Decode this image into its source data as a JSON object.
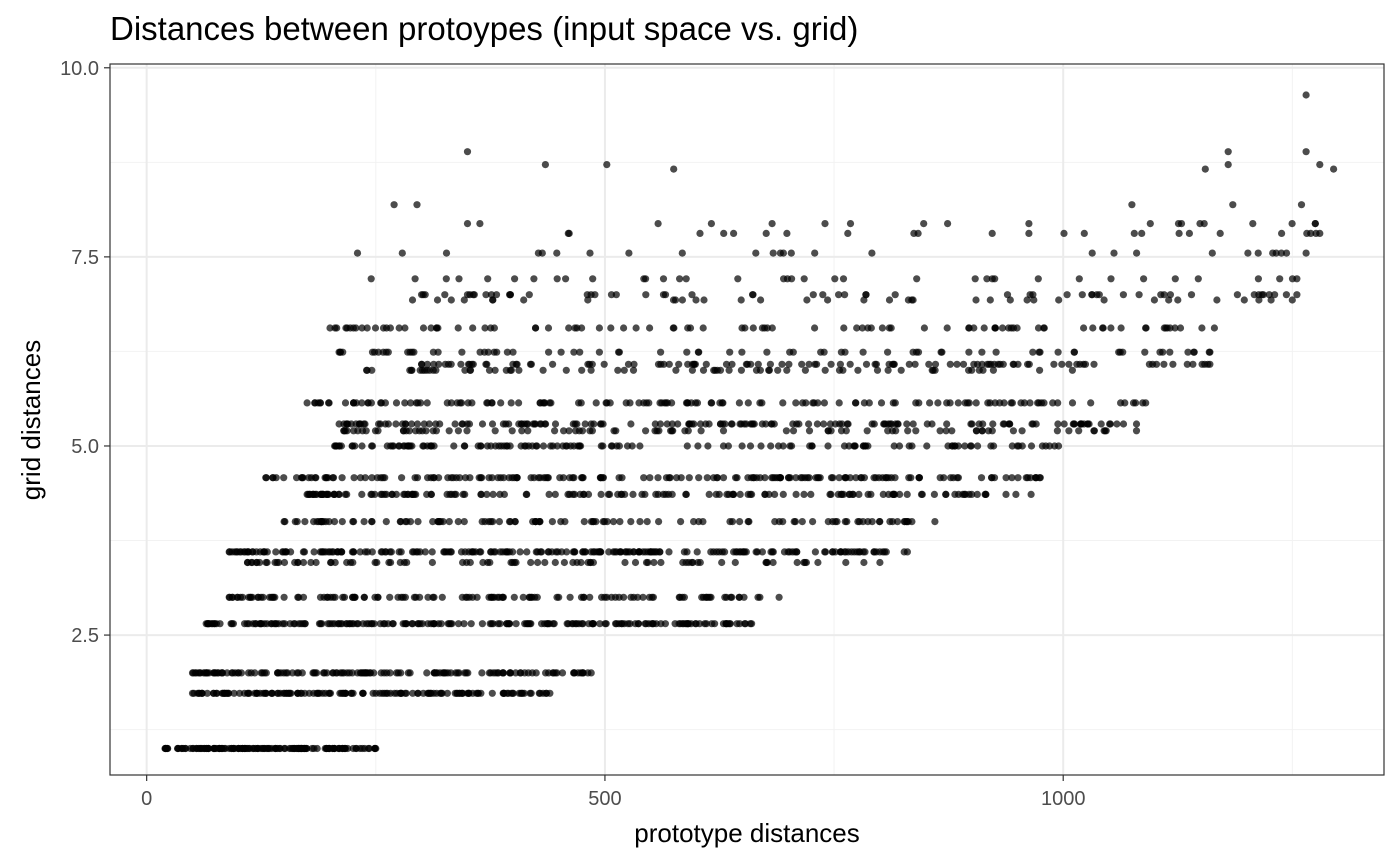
{
  "chart_data": {
    "type": "scatter",
    "title": "Distances between protoypes (input space vs. grid)",
    "xlabel": "prototype distances",
    "ylabel": "grid distances",
    "xlim": [
      -40,
      1350
    ],
    "ylim": [
      0.65,
      10.05
    ],
    "x_ticks": [
      0,
      500,
      1000
    ],
    "x_tick_labels": [
      "0",
      "500",
      "1000"
    ],
    "y_ticks": [
      2.5,
      5.0,
      7.5,
      10.0
    ],
    "y_tick_labels": [
      "2.5",
      "5.0",
      "7.5",
      "10.0"
    ],
    "point_color": "#000000",
    "point_opacity": 0.7,
    "grid": true,
    "legend": "none",
    "bands": [
      {
        "y": 1.0,
        "x_min": 20,
        "x_max": 250,
        "n": 150
      },
      {
        "y": 1.73,
        "x_min": 50,
        "x_max": 440,
        "n": 150
      },
      {
        "y": 2.0,
        "x_min": 50,
        "x_max": 485,
        "n": 140
      },
      {
        "y": 2.65,
        "x_min": 65,
        "x_max": 660,
        "n": 190
      },
      {
        "y": 3.0,
        "x_min": 90,
        "x_max": 690,
        "n": 120
      },
      {
        "y": 3.46,
        "x_min": 110,
        "x_max": 800,
        "n": 80
      },
      {
        "y": 3.6,
        "x_min": 90,
        "x_max": 830,
        "n": 210
      },
      {
        "y": 4.0,
        "x_min": 150,
        "x_max": 860,
        "n": 110
      },
      {
        "y": 4.36,
        "x_min": 175,
        "x_max": 965,
        "n": 150
      },
      {
        "y": 4.58,
        "x_min": 130,
        "x_max": 975,
        "n": 170
      },
      {
        "y": 5.0,
        "x_min": 205,
        "x_max": 995,
        "n": 130
      },
      {
        "y": 5.2,
        "x_min": 215,
        "x_max": 1080,
        "n": 80
      },
      {
        "y": 5.29,
        "x_min": 210,
        "x_max": 1080,
        "n": 150
      },
      {
        "y": 5.57,
        "x_min": 175,
        "x_max": 1090,
        "n": 130
      },
      {
        "y": 6.0,
        "x_min": 240,
        "x_max": 1010,
        "n": 60
      },
      {
        "y": 6.08,
        "x_min": 300,
        "x_max": 1160,
        "n": 100
      },
      {
        "y": 6.24,
        "x_min": 210,
        "x_max": 1160,
        "n": 70
      },
      {
        "y": 6.56,
        "x_min": 200,
        "x_max": 1165,
        "n": 90
      },
      {
        "y": 6.93,
        "x_min": 290,
        "x_max": 1250,
        "n": 35
      },
      {
        "y": 7.0,
        "x_min": 300,
        "x_max": 1255,
        "n": 55
      },
      {
        "y": 7.21,
        "x_min": 245,
        "x_max": 1255,
        "n": 35
      },
      {
        "y": 7.55,
        "x_min": 230,
        "x_max": 1265,
        "n": 25
      },
      {
        "y": 7.81,
        "x_min": 460,
        "x_max": 1280,
        "n": 20
      },
      {
        "y": 7.94,
        "x_min": 350,
        "x_max": 1275,
        "n": 15
      }
    ],
    "extra_points": [
      {
        "x": 350,
        "y": 8.89
      },
      {
        "x": 435,
        "y": 8.72
      },
      {
        "x": 502,
        "y": 8.72
      },
      {
        "x": 575,
        "y": 8.66
      },
      {
        "x": 1155,
        "y": 8.66
      },
      {
        "x": 1180,
        "y": 8.72
      },
      {
        "x": 1180,
        "y": 8.89
      },
      {
        "x": 1265,
        "y": 9.64
      },
      {
        "x": 1265,
        "y": 8.89
      },
      {
        "x": 1280,
        "y": 8.72
      },
      {
        "x": 1295,
        "y": 8.66
      },
      {
        "x": 1260,
        "y": 8.19
      },
      {
        "x": 1185,
        "y": 8.19
      },
      {
        "x": 1075,
        "y": 8.19
      },
      {
        "x": 270,
        "y": 8.19
      },
      {
        "x": 295,
        "y": 8.19
      },
      {
        "x": 765,
        "y": 7.81
      },
      {
        "x": 1095,
        "y": 7.94
      },
      {
        "x": 1270,
        "y": 7.81
      },
      {
        "x": 1275,
        "y": 7.94
      }
    ]
  }
}
